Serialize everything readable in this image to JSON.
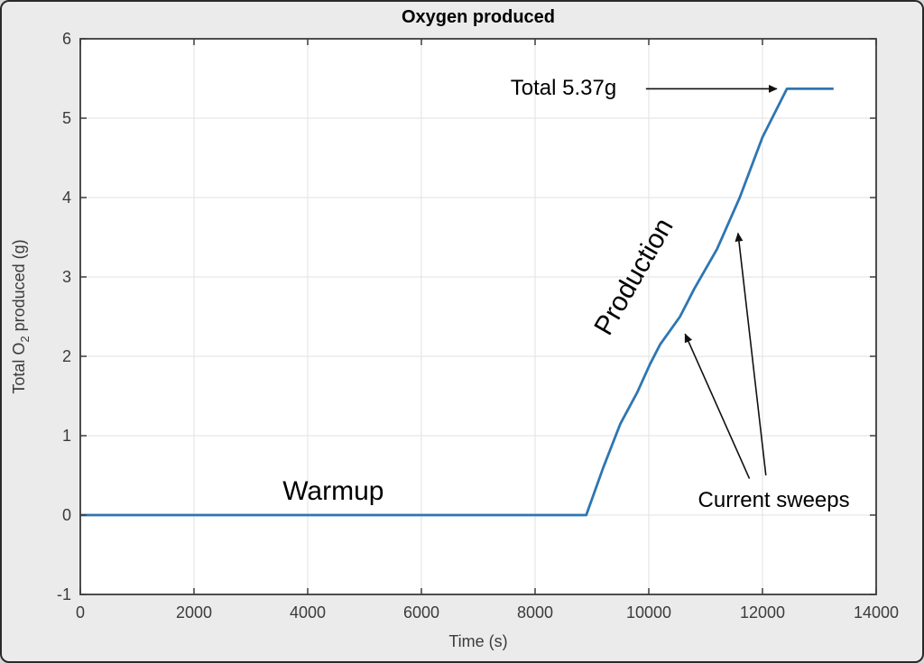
{
  "chart_data": {
    "type": "line",
    "title": "Oxygen produced",
    "xlabel": "Time (s)",
    "ylabel_parts": {
      "prefix": "Total O",
      "sub": "2",
      "suffix": " produced (g)"
    },
    "xlim": [
      0,
      14000
    ],
    "ylim": [
      -1,
      6
    ],
    "x_ticks": [
      0,
      2000,
      4000,
      6000,
      8000,
      10000,
      12000,
      14000
    ],
    "y_ticks": [
      -1,
      0,
      1,
      2,
      3,
      4,
      5,
      6
    ],
    "grid": true,
    "line_color": "#2e76b2",
    "series": [
      {
        "name": "Total O2 produced",
        "points": [
          [
            0,
            0
          ],
          [
            8900,
            0
          ],
          [
            9200,
            0.6
          ],
          [
            9500,
            1.15
          ],
          [
            9800,
            1.55
          ],
          [
            10020,
            1.9
          ],
          [
            10200,
            2.15
          ],
          [
            10350,
            2.3
          ],
          [
            10550,
            2.5
          ],
          [
            10800,
            2.85
          ],
          [
            11200,
            3.35
          ],
          [
            11600,
            4.0
          ],
          [
            12000,
            4.76
          ],
          [
            12430,
            5.37
          ],
          [
            13250,
            5.37
          ]
        ]
      }
    ],
    "final_total_g": 5.37,
    "warmup_end_s": 8900,
    "production_end_s": 12430
  },
  "annotations": {
    "warmup": {
      "text": "Warmup",
      "t": 4450,
      "g": 0.3,
      "rotation": 0
    },
    "production": {
      "text": "Production",
      "t": 9750,
      "g": 3.0,
      "rotation": -60
    },
    "total": {
      "text": "Total 5.37g",
      "t": 8500,
      "g": 5.37,
      "rotation": 0
    },
    "current_sweeps": {
      "text": "Current sweeps",
      "t": 12200,
      "g": 0.18,
      "rotation": 0
    }
  },
  "arrows": [
    {
      "from_t": 9950,
      "from_g": 5.37,
      "to_t": 12250,
      "to_g": 5.37
    },
    {
      "from_t": 11770,
      "from_g": 0.46,
      "to_t": 10640,
      "to_g": 2.28
    },
    {
      "from_t": 12060,
      "from_g": 0.5,
      "to_t": 11570,
      "to_g": 3.55
    }
  ],
  "colors": {
    "figure_background": "#ebebeb",
    "plot_background": "#ffffff",
    "grid": "#e2e2e2",
    "axis": "#3b3b3b",
    "annotation": "#111111"
  }
}
